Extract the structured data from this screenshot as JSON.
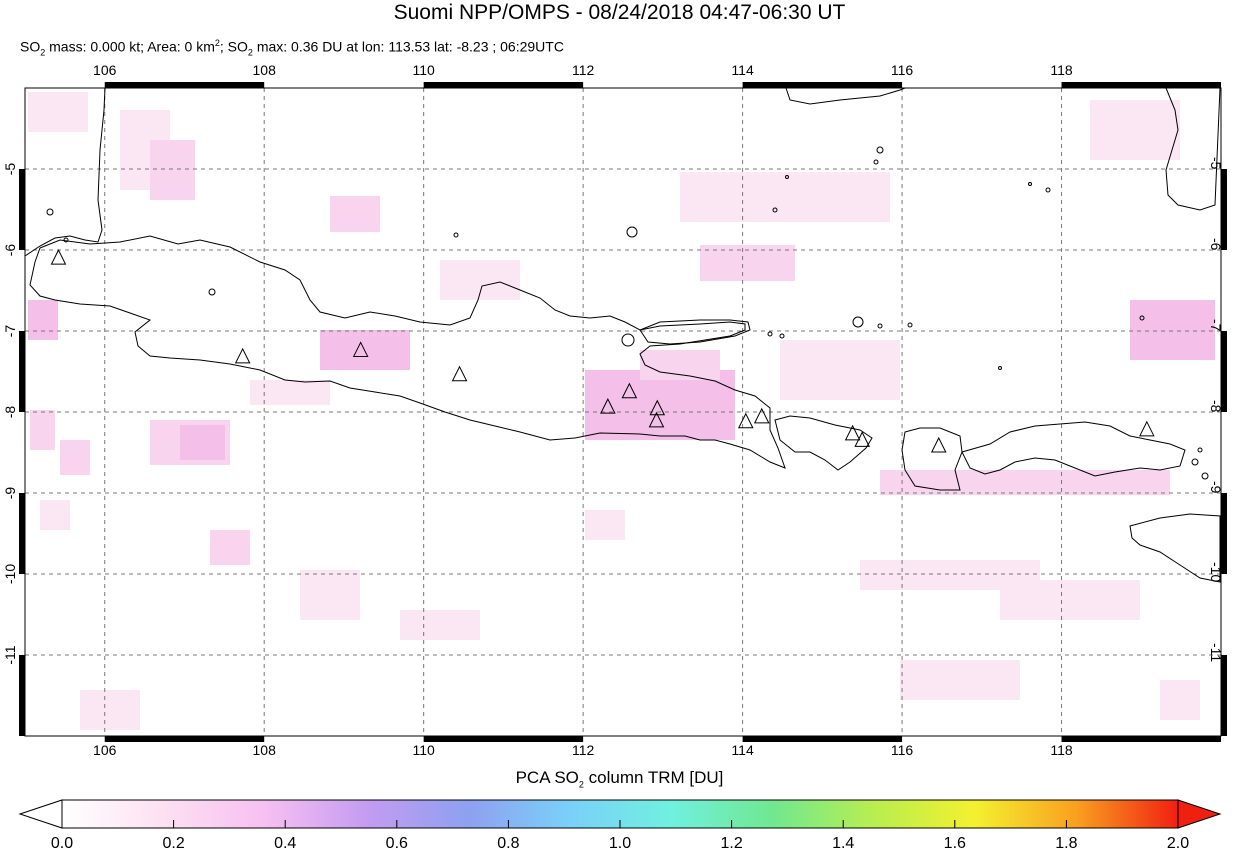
{
  "header": {
    "title": "Suomi NPP/OMPS - 08/24/2018 04:47-06:30 UT",
    "subtitle_parts": {
      "so2_a": "SO",
      "sub_a": "2",
      "mass_text": " mass: 0.000 kt; Area: 0 km",
      "sup_km": "2",
      "sep": "; SO",
      "sub_b": "2",
      "max_text": " max: 0.36 DU at lon: 113.53 lat: -8.23 ; 06:29UTC"
    }
  },
  "map": {
    "lon_ticks": [
      "106",
      "108",
      "110",
      "112",
      "114",
      "116",
      "118"
    ],
    "lat_ticks": [
      "-5",
      "-6",
      "-7",
      "-8",
      "-9",
      "-10",
      "-11"
    ],
    "lon_range": [
      105,
      120
    ],
    "lat_range": [
      -12,
      -4
    ],
    "volcanoes": [
      {
        "lon": 105.42,
        "lat": -6.1
      },
      {
        "lon": 107.73,
        "lat": -7.32
      },
      {
        "lon": 109.21,
        "lat": -7.24
      },
      {
        "lon": 110.45,
        "lat": -7.54
      },
      {
        "lon": 112.31,
        "lat": -7.94
      },
      {
        "lon": 112.58,
        "lat": -7.75
      },
      {
        "lon": 112.93,
        "lat": -7.96
      },
      {
        "lon": 112.92,
        "lat": -8.11
      },
      {
        "lon": 114.04,
        "lat": -8.12
      },
      {
        "lon": 114.24,
        "lat": -8.06
      },
      {
        "lon": 115.38,
        "lat": -8.27
      },
      {
        "lon": 115.5,
        "lat": -8.35
      },
      {
        "lon": 116.46,
        "lat": -8.42
      },
      {
        "lon": 119.07,
        "lat": -8.22
      }
    ],
    "colors": {
      "coast": "#000000",
      "grid": "#777777",
      "so2_faint": "#fbe6f4",
      "so2_light": "#f8d4ee",
      "so2_mid": "#f4bfe8"
    }
  },
  "colorbar": {
    "title_pre": "PCA SO",
    "title_sub": "2",
    "title_post": " column TRM [DU]",
    "labels": [
      "0.0",
      "0.2",
      "0.4",
      "0.6",
      "0.8",
      "1.0",
      "1.2",
      "1.4",
      "1.6",
      "1.8",
      "2.0"
    ],
    "range": [
      0.0,
      2.0
    ],
    "colors": [
      "#ffffff",
      "#fde0f2",
      "#f6c0f2",
      "#c49cf0",
      "#8fa0f0",
      "#7ad0f8",
      "#70f0e0",
      "#70e890",
      "#b8ee50",
      "#f4f030",
      "#f8a020",
      "#f02010"
    ]
  }
}
